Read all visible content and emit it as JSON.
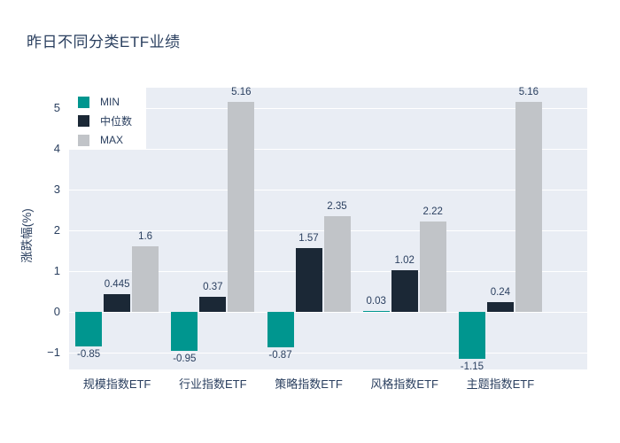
{
  "title": "昨日不同分类ETF业绩",
  "colors": {
    "page_background": "#ffffff",
    "plot_background": "#e9edf4",
    "gridline": "#ffffff",
    "text": "#2a3f5f",
    "series_min": "#00968f",
    "series_median": "#1b2836",
    "series_max": "#c1c4c8",
    "legend_background": "#ffffff"
  },
  "chart_data": {
    "type": "bar",
    "title": "昨日不同分类ETF业绩",
    "xlabel": "",
    "ylabel": "涨跌幅(%)",
    "categories": [
      "规模指数ETF",
      "行业指数ETF",
      "策略指数ETF",
      "风格指数ETF",
      "主题指数ETF"
    ],
    "series": [
      {
        "name": "MIN",
        "color": "#00968f",
        "values": [
          -0.85,
          -0.95,
          -0.87,
          0.03,
          -1.15
        ],
        "labels": [
          "-0.85",
          "-0.95",
          "-0.87",
          "0.03",
          "-1.15"
        ]
      },
      {
        "name": "中位数",
        "color": "#1b2836",
        "values": [
          0.445,
          0.37,
          1.57,
          1.02,
          0.24
        ],
        "labels": [
          "0.445",
          "0.37",
          "1.57",
          "1.02",
          "0.24"
        ]
      },
      {
        "name": "MAX",
        "color": "#c1c4c8",
        "values": [
          1.6,
          5.16,
          2.35,
          2.22,
          5.16
        ],
        "labels": [
          "1.6",
          "5.16",
          "2.35",
          "2.22",
          "5.16"
        ]
      }
    ],
    "yticks": [
      5,
      4,
      3,
      2,
      1,
      0,
      -1
    ],
    "ytick_labels": [
      "5",
      "4",
      "3",
      "2",
      "1",
      "0",
      "−1"
    ],
    "ylim": [
      -1.41,
      5.5
    ],
    "grid": true,
    "legend_position": "inside-top-left"
  }
}
